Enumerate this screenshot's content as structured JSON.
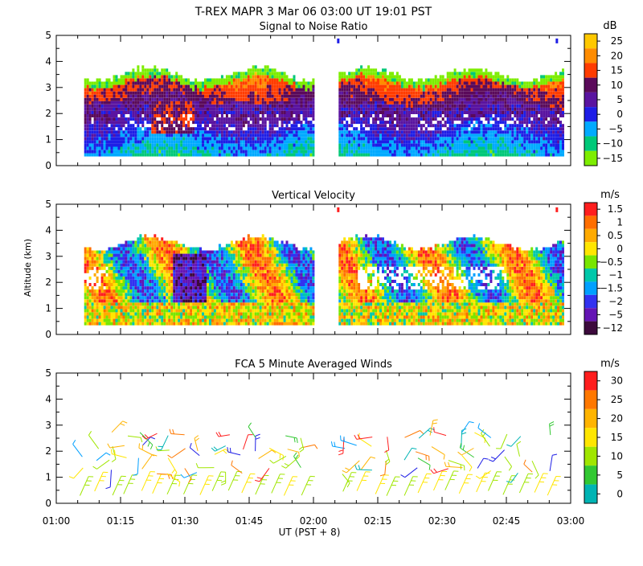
{
  "chart_data": {
    "type": "heatmap",
    "title": "T-REX   MAPR   3 Mar 06   03:00 UT   19:01   PST",
    "xlabel": "UT  (PST + 8)",
    "ylabel": "Altitude (km)",
    "x_ticks": [
      "01:00",
      "01:15",
      "01:30",
      "01:45",
      "02:00",
      "02:15",
      "02:30",
      "02:45",
      "03:00"
    ],
    "y_ticks": [
      "0",
      "1",
      "2",
      "3",
      "4",
      "5"
    ],
    "ylim": [
      0,
      5
    ],
    "panels": [
      {
        "name": "snr",
        "title": "Signal to Noise Ratio",
        "unit": "dB",
        "colorbar_labels": [
          "25",
          "20",
          "15",
          "10",
          "5",
          "0",
          "−5",
          "−10",
          "−15"
        ],
        "colors": [
          "#ffc800",
          "#ff8c00",
          "#ff3c00",
          "#5a0a5a",
          "#5a14a0",
          "#1e1ee6",
          "#00aaff",
          "#00c878",
          "#7ded00"
        ]
      },
      {
        "name": "velocity",
        "title": "Vertical Velocity",
        "unit": "m/s",
        "colorbar_labels": [
          "1.5",
          "1",
          "0.5",
          "0",
          "−0.5",
          "−1",
          "−1.5",
          "−2",
          "−5",
          "−12"
        ],
        "colors": [
          "#ff1e1e",
          "#ff6e00",
          "#ffaa00",
          "#ffe600",
          "#78e600",
          "#00c8aa",
          "#00a0ff",
          "#3232f0",
          "#6414b4",
          "#3c0a3c"
        ]
      },
      {
        "name": "winds",
        "title": "FCA 5 Minute Averaged Winds",
        "unit": "m/s",
        "colorbar_labels": [
          "30",
          "25",
          "20",
          "15",
          "10",
          "5",
          "0"
        ],
        "colors": [
          "#ff1e1e",
          "#ff7800",
          "#ffb400",
          "#ffe600",
          "#a0e600",
          "#32c832",
          "#00b4b4",
          "#00a0ff",
          "#1e1ee6",
          "#5a0a8c"
        ]
      }
    ]
  }
}
